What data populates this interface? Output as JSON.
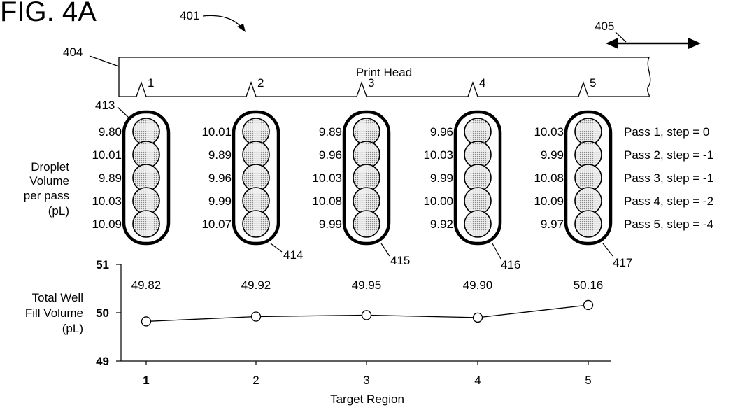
{
  "figure_label": "FIG. 4A",
  "refs": {
    "r401": "401",
    "r404": "404",
    "r405": "405",
    "r413": "413",
    "r414": "414",
    "r415": "415",
    "r416": "416",
    "r417": "417"
  },
  "print_head": {
    "label": "Print Head",
    "nozzles": [
      "1",
      "2",
      "3",
      "4",
      "5"
    ]
  },
  "droplet_axis_label": [
    "Droplet",
    "Volume",
    "per pass",
    "(pL)"
  ],
  "columns": [
    {
      "values": [
        "9.80",
        "10.01",
        "9.89",
        "10.03",
        "10.09"
      ]
    },
    {
      "values": [
        "10.01",
        "9.89",
        "9.96",
        "9.99",
        "10.07"
      ]
    },
    {
      "values": [
        "9.89",
        "9.96",
        "10.03",
        "10.08",
        "9.99"
      ]
    },
    {
      "values": [
        "9.96",
        "10.03",
        "9.99",
        "10.00",
        "9.92"
      ]
    },
    {
      "values": [
        "10.03",
        "9.99",
        "10.08",
        "10.09",
        "9.97"
      ]
    }
  ],
  "passes": [
    "Pass 1, step = 0",
    "Pass 2, step = -1",
    "Pass 3, step = -1",
    "Pass 4, step = -2",
    "Pass 5, step = -4"
  ],
  "chart_data": {
    "type": "line",
    "xlabel": "Target Region",
    "ylabel": [
      "Total Well",
      "Fill Volume",
      "(pL)"
    ],
    "x": [
      1,
      2,
      3,
      4,
      5
    ],
    "x_tick_labels": [
      "1",
      "2",
      "3",
      "4",
      "5"
    ],
    "series": [
      {
        "values": [
          49.82,
          49.92,
          49.95,
          49.9,
          50.16
        ]
      }
    ],
    "data_labels": [
      "49.82",
      "49.92",
      "49.95",
      "49.90",
      "50.16"
    ],
    "ylim": [
      49,
      51
    ],
    "y_tick_labels": [
      "49",
      "50",
      "51"
    ],
    "grid": false,
    "marker": "open-circle"
  }
}
